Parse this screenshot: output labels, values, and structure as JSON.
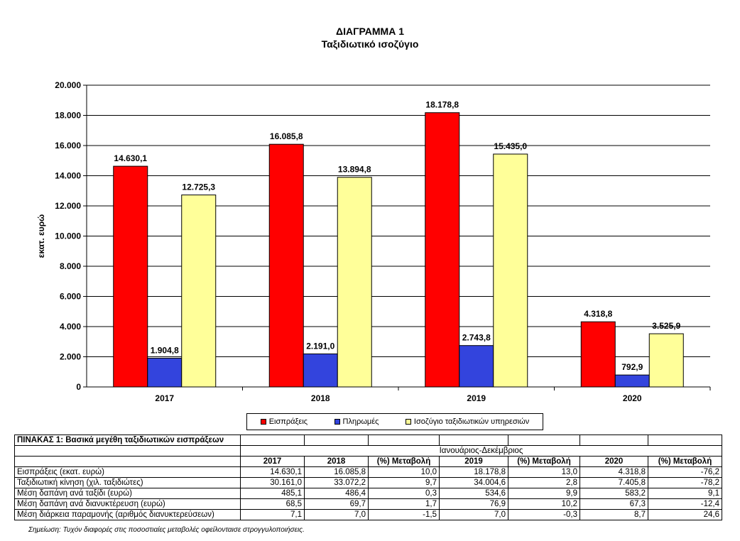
{
  "chart_data": {
    "type": "bar",
    "title": "ΔΙΑΓΡΑΜΜΑ 1",
    "subtitle": "Ταξιδιωτικό ισοζύγιο",
    "ylabel": "εκατ. ευρώ",
    "xlabel": "",
    "ylim": [
      0,
      20000
    ],
    "yticks": [
      "0",
      "2.000",
      "4.000",
      "6.000",
      "8.000",
      "10.000",
      "12.000",
      "14.000",
      "16.000",
      "18.000",
      "20.000"
    ],
    "categories": [
      "2017",
      "2018",
      "2019",
      "2020"
    ],
    "grid": true,
    "legend_position": "bottom",
    "series": [
      {
        "name": "Εισπράξεις",
        "color": "#ff0000",
        "values": [
          14630.1,
          16085.8,
          18178.8,
          4318.8
        ],
        "labels": [
          "14.630,1",
          "16.085,8",
          "18.178,8",
          "4.318,8"
        ]
      },
      {
        "name": "Πληρωμές",
        "color": "#3344dd",
        "values": [
          1904.8,
          2191.0,
          2743.8,
          792.9
        ],
        "labels": [
          "1.904,8",
          "2.191,0",
          "2.743,8",
          "792,9"
        ]
      },
      {
        "name": "Ισοζύγιο ταξιδιωτικών υπηρεσιών",
        "color": "#ffff99",
        "values": [
          12725.3,
          13894.8,
          15435.0,
          3525.9
        ],
        "labels": [
          "12.725,3",
          "13.894,8",
          "15.435,0",
          "3.525,9"
        ]
      }
    ]
  },
  "table": {
    "caption": "ΠΙΝΑΚΑΣ 1: Βασικά μεγέθη ταξιδιωτικών εισπράξεων",
    "period": "Ιανουάριος-Δεκέμβριος",
    "columns": [
      "2017",
      "2018",
      "(%) Μεταβολή",
      "2019",
      "(%) Μεταβολή",
      "2020",
      "(%) Μεταβολή"
    ],
    "rows": [
      {
        "label": "Εισπράξεις (εκατ. ευρώ)",
        "cells": [
          "14.630,1",
          "16.085,8",
          "10,0",
          "18.178,8",
          "13,0",
          "4.318,8",
          "-76,2"
        ]
      },
      {
        "label": "Ταξιδιωτική κίνηση (χιλ. ταξιδιώτες)",
        "cells": [
          "30.161,0",
          "33.072,2",
          "9,7",
          "34.004,6",
          "2,8",
          "7.405,8",
          "-78,2"
        ]
      },
      {
        "label": "Μέση δαπάνη ανά ταξίδι (ευρώ)",
        "cells": [
          "485,1",
          "486,4",
          "0,3",
          "534,6",
          "9,9",
          "583,2",
          "9,1"
        ]
      },
      {
        "label": "Μέση δαπάνη ανά διανυκτέρευση (ευρώ)",
        "cells": [
          "68,5",
          "69,7",
          "1,7",
          "76,9",
          "10,2",
          "67,3",
          "-12,4"
        ]
      },
      {
        "label": "Μέση διάρκεια παραμονής (αριθμός διανυκτερεύσεων)",
        "cells": [
          "7,1",
          "7,0",
          "-1,5",
          "7,0",
          "-0,3",
          "8,7",
          "24,6"
        ]
      }
    ],
    "note": "Σημείωση: Τυχόν διαφορές στις ποσοστιαίες μεταβολές οφείλονταισε στρογγυλοποιήσεις."
  }
}
